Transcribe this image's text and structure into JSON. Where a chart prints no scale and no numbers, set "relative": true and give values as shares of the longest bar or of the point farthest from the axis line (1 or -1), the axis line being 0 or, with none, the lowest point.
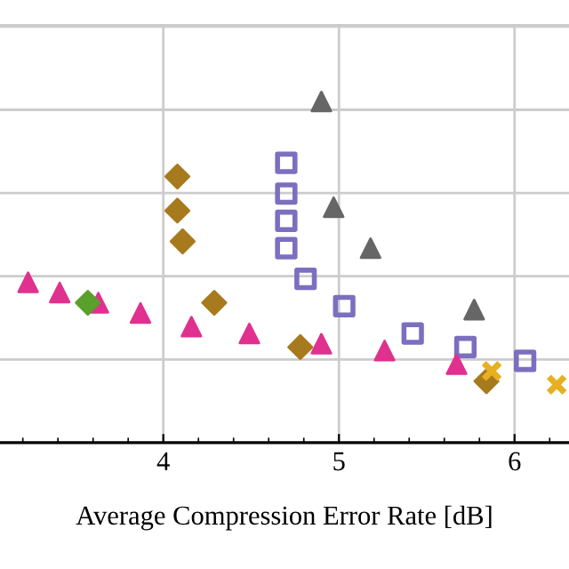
{
  "chart_data": {
    "type": "scatter",
    "xlabel": "Average Compression Error Rate [dB]",
    "relative": true,
    "xlim": [
      3.07,
      6.31
    ],
    "xticks": [
      4,
      5,
      6
    ],
    "grid": true,
    "legend": false,
    "series": [
      {
        "color": "#666666",
        "marker": "triangle",
        "x": [
          4.9,
          4.97,
          5.18,
          5.77
        ],
        "values": [
          1.0,
          0.69,
          0.57,
          0.39
        ]
      },
      {
        "color": "#7b6fc0",
        "marker": "square",
        "x": [
          4.7,
          4.7,
          4.7,
          4.7,
          4.81,
          5.03,
          5.42,
          5.72,
          6.06
        ],
        "values": [
          0.82,
          0.73,
          0.65,
          0.57,
          0.48,
          0.4,
          0.32,
          0.28,
          0.24
        ]
      },
      {
        "color": "#a87a1e",
        "marker": "diamond",
        "x": [
          4.08,
          4.08,
          4.11,
          4.29,
          4.78,
          5.84
        ],
        "values": [
          0.78,
          0.68,
          0.59,
          0.41,
          0.28,
          0.18
        ]
      },
      {
        "color": "#e0318f",
        "marker": "triangle",
        "x": [
          3.23,
          3.41,
          3.63,
          3.87,
          4.16,
          4.49,
          4.9,
          5.26,
          5.67
        ],
        "values": [
          0.47,
          0.44,
          0.41,
          0.38,
          0.34,
          0.32,
          0.29,
          0.27,
          0.23
        ]
      },
      {
        "color": "#5aa02c",
        "marker": "diamond",
        "x": [
          3.57
        ],
        "values": [
          0.41
        ]
      },
      {
        "color": "#e8b020",
        "marker": "cross",
        "x": [
          5.87,
          6.24
        ],
        "values": [
          0.21,
          0.17
        ]
      }
    ]
  }
}
